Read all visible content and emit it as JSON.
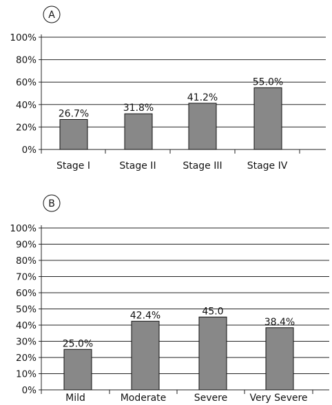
{
  "chart_data": [
    {
      "type": "bar",
      "panel_label": "A",
      "categories": [
        "Stage I",
        "Stage II",
        "Stage III",
        "Stage IV"
      ],
      "values": [
        26.7,
        31.8,
        41.2,
        55.0
      ],
      "data_labels": [
        "26.7%",
        "31.8%",
        "41.2%",
        "55.0%"
      ],
      "yticks": [
        "0%",
        "20%",
        "40%",
        "60%",
        "80%",
        "100%"
      ],
      "ylim": [
        0,
        100
      ],
      "grid": true,
      "bar_color": "#888888"
    },
    {
      "type": "bar",
      "panel_label": "B",
      "categories": [
        "Mild",
        "Moderate",
        "Severe",
        "Very Severe"
      ],
      "values": [
        25.0,
        42.4,
        45.0,
        38.4
      ],
      "data_labels": [
        "25.0%",
        "42.4%",
        "45.0",
        "38.4%"
      ],
      "yticks": [
        "0%",
        "10%",
        "20%",
        "30%",
        "40%",
        "50%",
        "60%",
        "70%",
        "80%",
        "90%",
        "100%"
      ],
      "ylim": [
        0,
        100
      ],
      "grid": true,
      "bar_color": "#888888"
    }
  ]
}
